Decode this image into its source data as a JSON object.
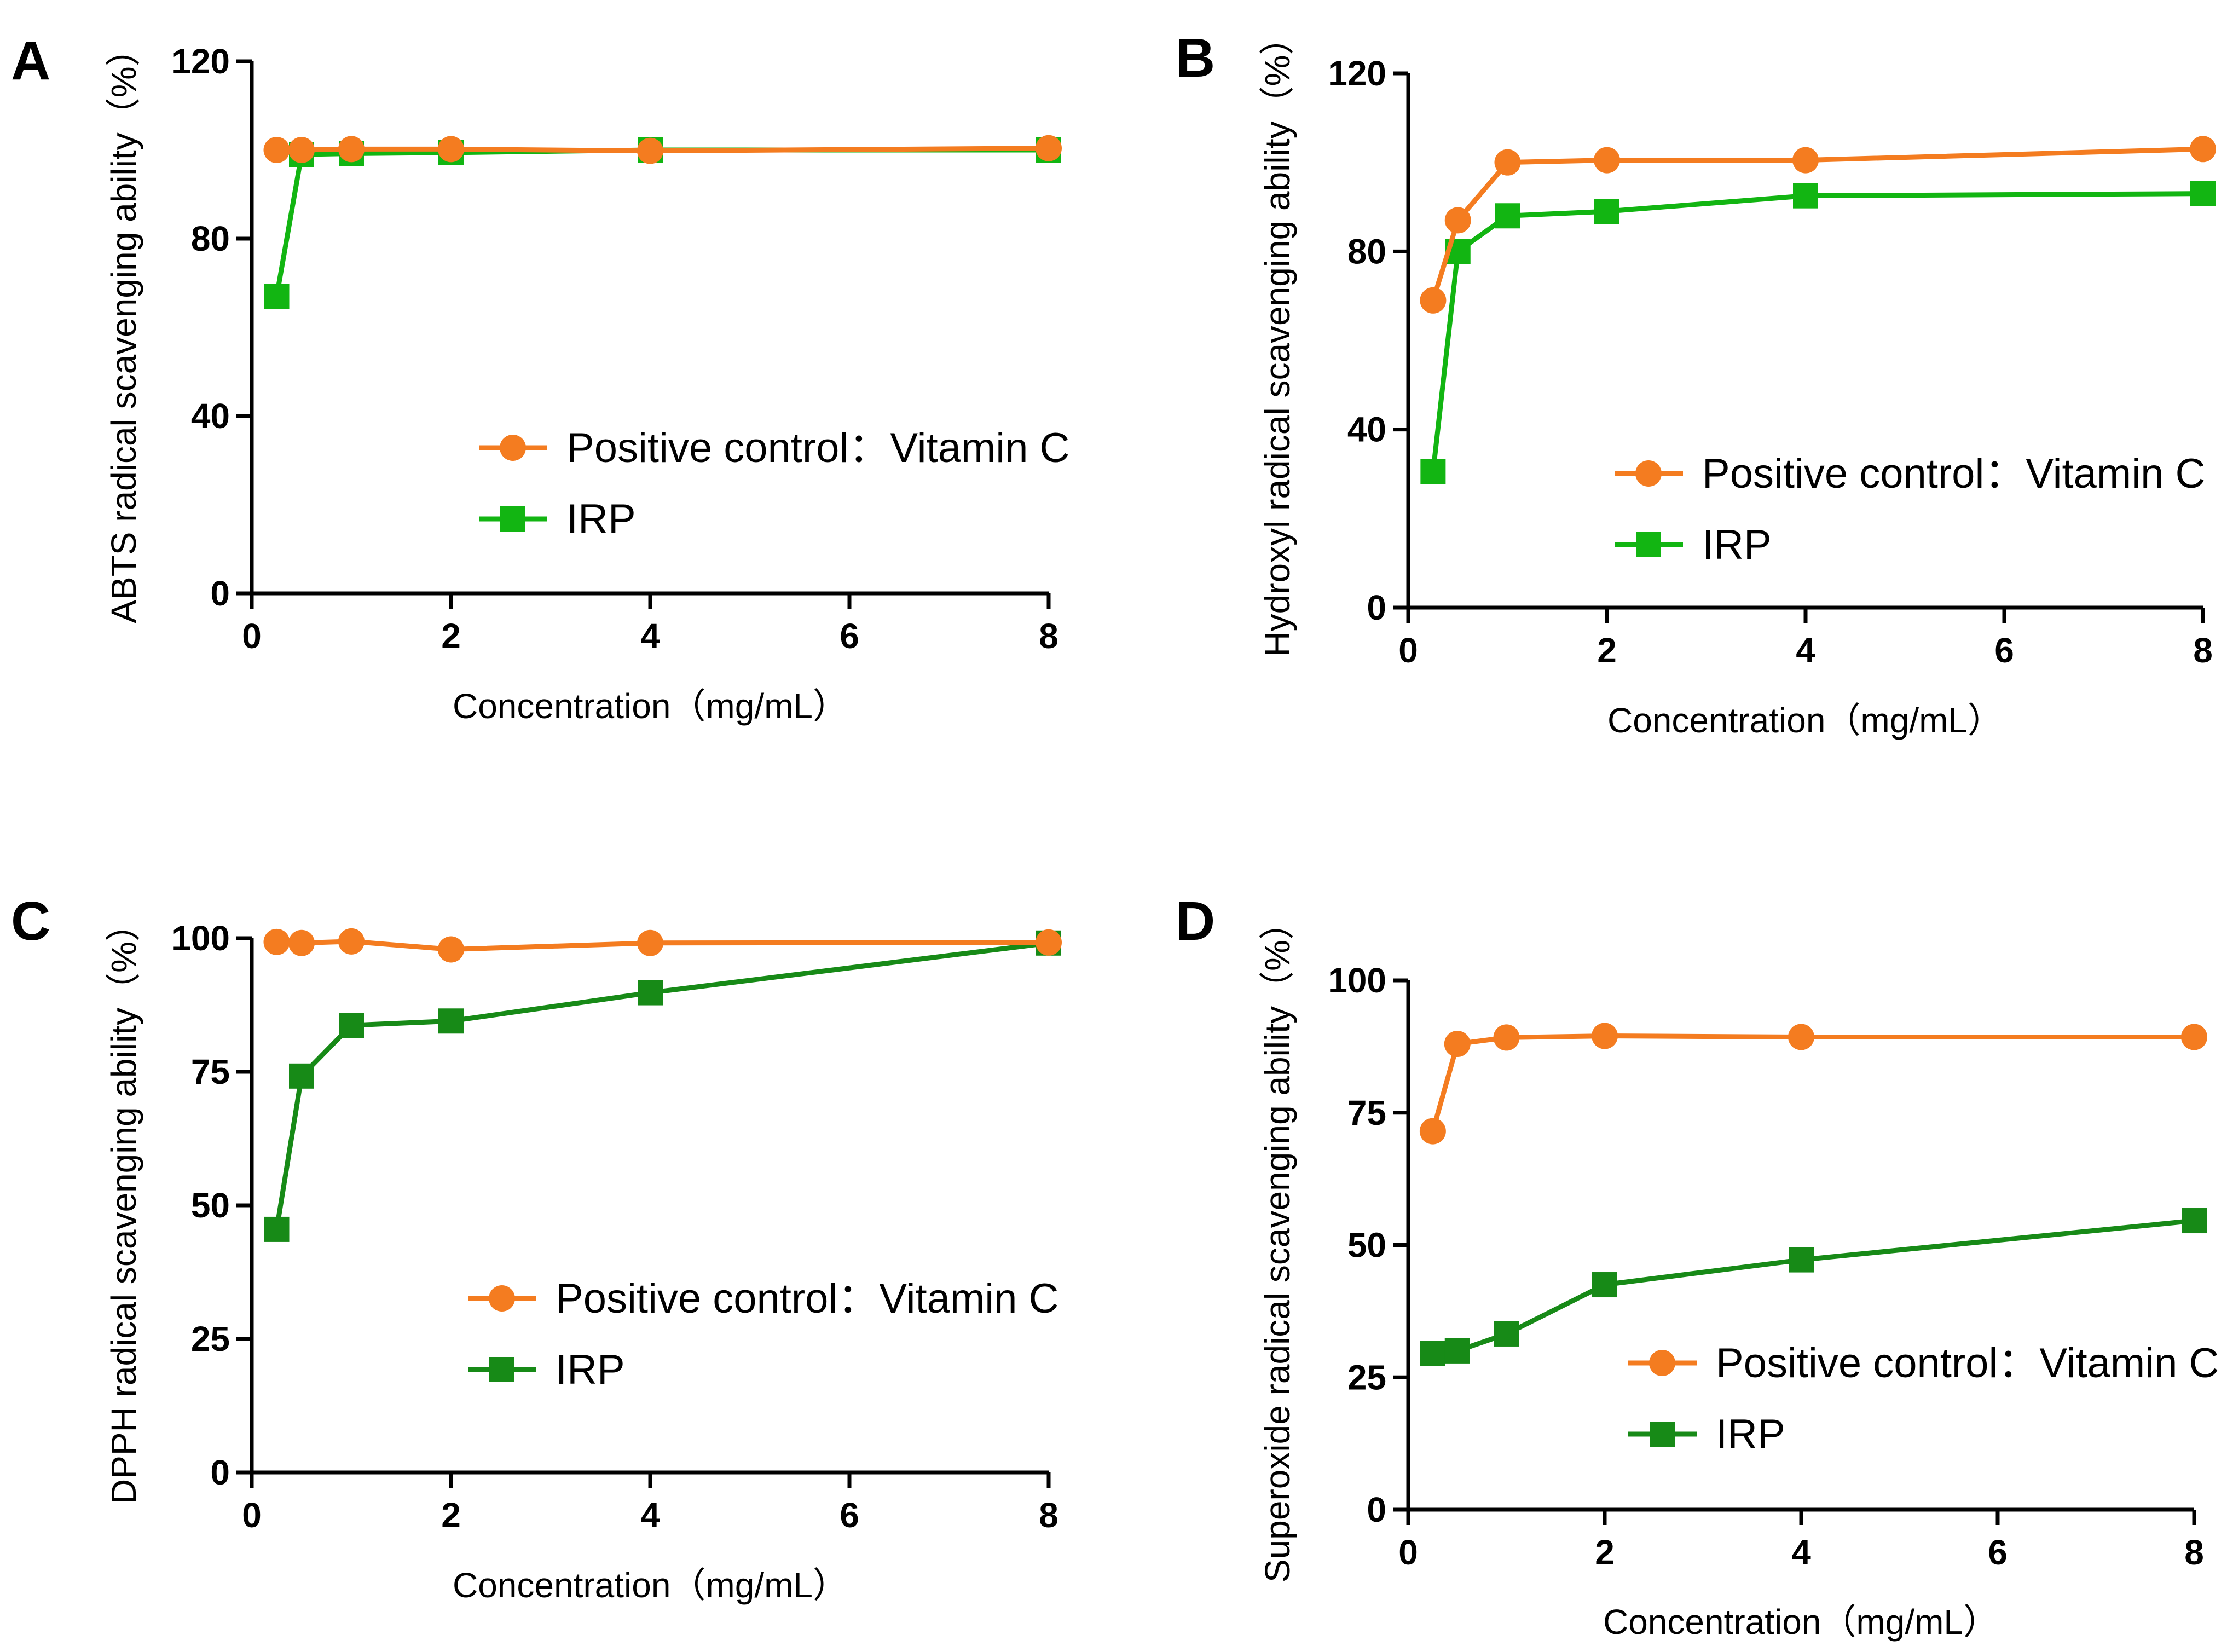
{
  "figure": {
    "colors": {
      "vitc": "#F47C20",
      "irp": "#12B512",
      "irp_dark": "#178A17",
      "axis": "#000000"
    }
  },
  "chart_data": [
    {
      "panel": "A",
      "type": "line",
      "xlabel": "Concentration（mg/mL）",
      "ylabel": "ABTS radical scavenging ability（%）",
      "xlim": [
        0,
        8
      ],
      "ylim": [
        0,
        120
      ],
      "xticks": [
        "0",
        "2",
        "4",
        "6",
        "8"
      ],
      "yticks": [
        "0",
        "40",
        "80",
        "120"
      ],
      "legend_position": "center-right",
      "series": [
        {
          "name": "Positive control：Vitamin C",
          "marker": "circle",
          "color": "#F47C20",
          "x": [
            0.25,
            0.5,
            1,
            2,
            4,
            8
          ],
          "y": [
            100,
            100,
            100.2,
            100.2,
            99.8,
            100.4
          ]
        },
        {
          "name": "IRP",
          "marker": "square",
          "color": "#12B512",
          "x": [
            0.25,
            0.5,
            1,
            2,
            4,
            8
          ],
          "y": [
            67,
            99,
            99.2,
            99.4,
            100,
            100
          ]
        }
      ]
    },
    {
      "panel": "B",
      "type": "line",
      "xlabel": "Concentration（mg/mL）",
      "ylabel": "Hydroxyl radical scavenging ability（%）",
      "xlim": [
        0,
        8
      ],
      "ylim": [
        0,
        120
      ],
      "xticks": [
        "0",
        "2",
        "4",
        "6",
        "8"
      ],
      "yticks": [
        "0",
        "40",
        "80",
        "120"
      ],
      "legend_position": "center-right",
      "series": [
        {
          "name": "Positive control：Vitamin C",
          "marker": "circle",
          "color": "#F47C20",
          "x": [
            0.25,
            0.5,
            1,
            2,
            4,
            8
          ],
          "y": [
            69,
            87,
            100,
            100.5,
            100.5,
            103
          ]
        },
        {
          "name": "IRP",
          "marker": "square",
          "color": "#12B512",
          "x": [
            0.25,
            0.5,
            1,
            2,
            4,
            8
          ],
          "y": [
            30.5,
            80,
            88,
            89,
            92.5,
            93
          ]
        }
      ]
    },
    {
      "panel": "C",
      "type": "line",
      "xlabel": "Concentration（mg/mL）",
      "ylabel": "DPPH radical scavenging ability（%）",
      "xlim": [
        0,
        8
      ],
      "ylim": [
        0,
        100
      ],
      "xticks": [
        "0",
        "2",
        "4",
        "6",
        "8"
      ],
      "yticks": [
        "0",
        "25",
        "50",
        "75",
        "100"
      ],
      "legend_position": "lower-right",
      "series": [
        {
          "name": "Positive control：Vitamin C",
          "marker": "circle",
          "color": "#F47C20",
          "x": [
            0.25,
            0.5,
            1,
            2,
            4,
            8
          ],
          "y": [
            99.3,
            99.1,
            99.4,
            97.9,
            99.1,
            99.2
          ]
        },
        {
          "name": "IRP",
          "marker": "square",
          "color": "#178A17",
          "x": [
            0.25,
            0.5,
            1,
            2,
            4,
            8
          ],
          "y": [
            45.5,
            74.2,
            83.7,
            84.5,
            89.8,
            99.1
          ]
        }
      ]
    },
    {
      "panel": "D",
      "type": "line",
      "xlabel": "Concentration（mg/mL）",
      "ylabel": "Superoxide radical scavenging ability（%）",
      "xlim": [
        0,
        8
      ],
      "ylim": [
        0,
        100
      ],
      "xticks": [
        "0",
        "2",
        "4",
        "6",
        "8"
      ],
      "yticks": [
        "0",
        "25",
        "50",
        "75",
        "100"
      ],
      "legend_position": "lower-right",
      "series": [
        {
          "name": "Positive control：Vitamin C",
          "marker": "circle",
          "color": "#F47C20",
          "x": [
            0.25,
            0.5,
            1,
            2,
            4,
            8
          ],
          "y": [
            71.5,
            88,
            89.2,
            89.5,
            89.3,
            89.3
          ]
        },
        {
          "name": "IRP",
          "marker": "square",
          "color": "#178A17",
          "x": [
            0.25,
            0.5,
            1,
            2,
            4,
            8
          ],
          "y": [
            29.5,
            30,
            33.2,
            42.5,
            47.2,
            54.6
          ]
        }
      ]
    }
  ]
}
